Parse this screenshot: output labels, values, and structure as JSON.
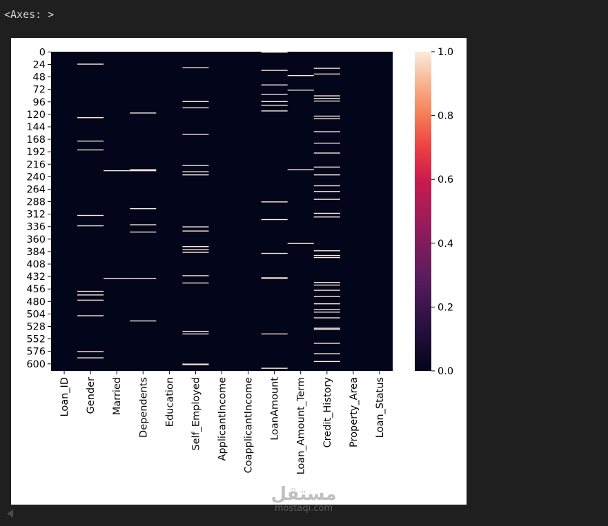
{
  "output_label": "<Axes: >",
  "watermark": {
    "logo_text": "مستقل",
    "url": "mostaql.com"
  },
  "chart_data": {
    "type": "heatmap",
    "title": "",
    "xlabel": "",
    "ylabel": "",
    "columns": [
      "Loan_ID",
      "Gender",
      "Married",
      "Dependents",
      "Education",
      "Self_Employed",
      "ApplicantIncome",
      "CoapplicantIncome",
      "LoanAmount",
      "Loan_Amount_Term",
      "Credit_History",
      "Property_Area",
      "Loan_Status"
    ],
    "y_ticks": [
      "0",
      "24",
      "48",
      "72",
      "96",
      "120",
      "144",
      "168",
      "192",
      "216",
      "240",
      "264",
      "288",
      "312",
      "336",
      "360",
      "384",
      "408",
      "432",
      "456",
      "480",
      "504",
      "528",
      "552",
      "576",
      "600"
    ],
    "n_rows": 614,
    "colorbar": {
      "ticks": [
        "0.0",
        "0.2",
        "0.4",
        "0.6",
        "0.8",
        "1.0"
      ],
      "range": [
        0,
        1
      ]
    },
    "colors": {
      "zero": "#03051a",
      "one": "#faebdd"
    },
    "missing_rows": {
      "Loan_ID": [],
      "Gender": [
        23,
        126,
        171,
        188,
        314,
        334,
        460,
        467,
        477,
        507,
        576,
        588
      ],
      "Married": [
        228,
        435
      ],
      "Dependents": [
        117,
        226,
        228,
        301,
        332,
        346,
        435,
        517
      ],
      "Education": [],
      "Self_Employed": [
        30,
        95,
        107,
        158,
        218,
        230,
        236,
        336,
        344,
        374,
        380,
        385,
        430,
        444,
        537,
        542,
        600,
        601
      ],
      "ApplicantIncome": [],
      "CoapplicantIncome": [],
      "LoanAmount": [
        0,
        35,
        63,
        81,
        95,
        102,
        113,
        288,
        322,
        387,
        434,
        435,
        542,
        608
      ],
      "Loan_Amount_Term": [
        45,
        73,
        226,
        368
      ],
      "Credit_History": [
        31,
        42,
        84,
        89,
        94,
        123,
        128,
        153,
        175,
        194,
        221,
        236,
        257,
        268,
        283,
        310,
        317,
        382,
        391,
        395,
        443,
        448,
        458,
        470,
        484,
        495,
        500,
        511,
        531,
        533,
        560,
        580,
        595
      ],
      "Property_Area": [],
      "Loan_Status": []
    }
  }
}
